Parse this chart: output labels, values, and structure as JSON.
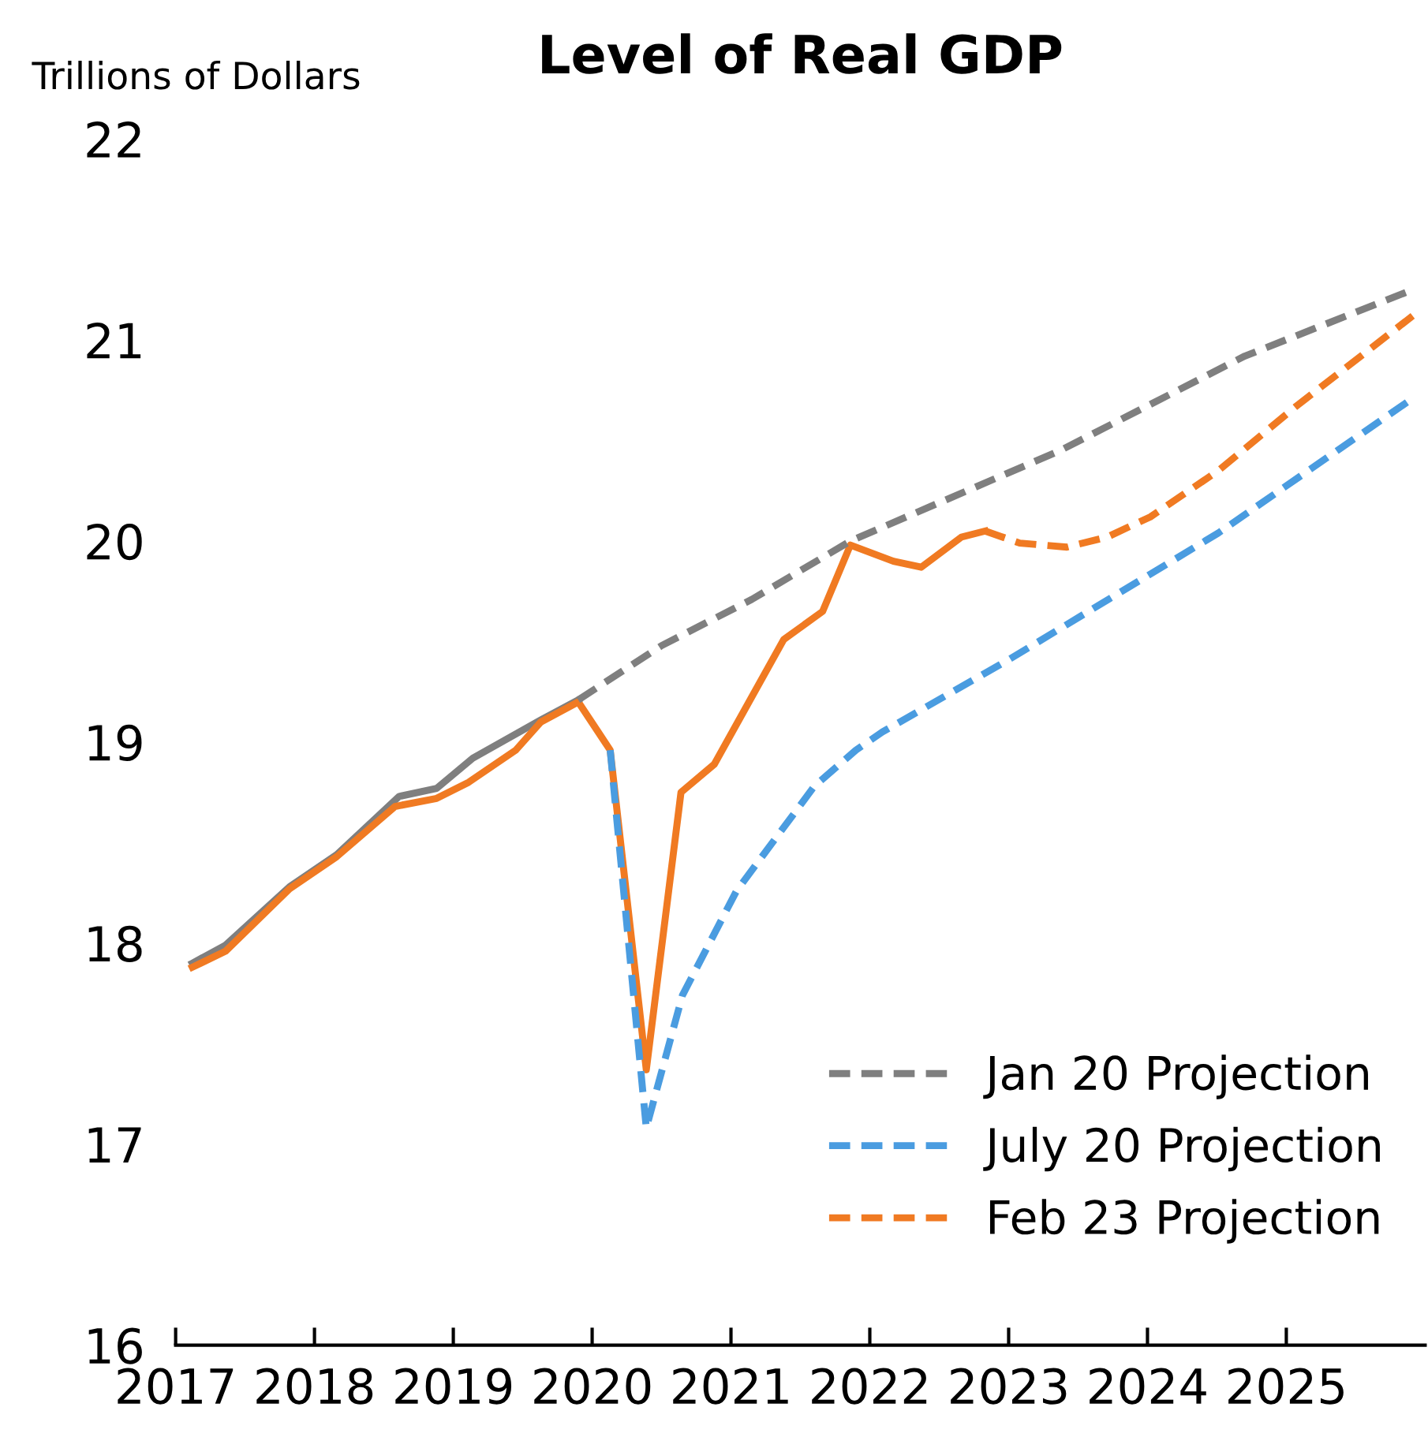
{
  "chart_data": {
    "type": "line",
    "title": "Level of Real GDP",
    "ylabel": "Trillions of Dollars",
    "xlim": [
      2017,
      2026
    ],
    "xticks": [
      2017,
      2018,
      2019,
      2020,
      2021,
      2022,
      2023,
      2024,
      2025
    ],
    "ylim": [
      16,
      22
    ],
    "yticks": [
      16,
      17,
      18,
      19,
      20,
      21,
      22
    ],
    "grid": false,
    "legend": "bottom right",
    "marker": "none",
    "series": [
      {
        "color": "#7f7f7f",
        "line_style": "solid",
        "x": [
          2017.12,
          2017.36,
          2017.82,
          2018.16,
          2018.61,
          2018.88,
          2019.14,
          2019.63,
          2019.9
        ],
        "values": [
          17.9,
          17.99,
          18.28,
          18.44,
          18.73,
          18.77,
          18.92,
          19.11,
          19.21
        ]
      },
      {
        "name": "Jan 20 Projection",
        "color": "#7f7f7f",
        "line_style": "dashed",
        "x": [
          2019.9,
          2020.5,
          2021.15,
          2021.86,
          2023.37,
          2024.7,
          2025.91
        ],
        "values": [
          19.21,
          19.48,
          19.71,
          20.0,
          20.45,
          20.92,
          21.25
        ]
      },
      {
        "name": "July 20 Projection",
        "color": "#4a9ce0",
        "line_style": "dashed",
        "x": [
          2020.13,
          2020.39,
          2020.65,
          2021.04,
          2021.6,
          2021.9,
          2022.09,
          2023.0,
          2024.51,
          2025.91
        ],
        "values": [
          18.96,
          17.08,
          17.74,
          18.26,
          18.78,
          18.96,
          19.05,
          19.41,
          20.04,
          20.71
        ]
      },
      {
        "color": "#f07a22",
        "line_style": "solid",
        "x": [
          2017.12,
          2017.36,
          2017.82,
          2018.16,
          2018.58,
          2018.88,
          2019.11,
          2019.45,
          2019.63,
          2019.9,
          2020.13,
          2020.39,
          2020.64,
          2020.88,
          2021.38,
          2021.66,
          2021.86,
          2022.17,
          2022.37,
          2022.66,
          2022.83
        ],
        "values": [
          17.88,
          17.96,
          18.27,
          18.43,
          18.68,
          18.72,
          18.8,
          18.96,
          19.1,
          19.2,
          18.96,
          17.37,
          18.75,
          18.89,
          19.51,
          19.65,
          19.98,
          19.9,
          19.87,
          20.02,
          20.05
        ]
      },
      {
        "name": "Feb 23 Projection",
        "color": "#f07a22",
        "line_style": "dashed",
        "x": [
          2022.83,
          2023.08,
          2023.42,
          2023.71,
          2024.02,
          2024.51,
          2025.07,
          2025.91
        ],
        "values": [
          20.05,
          19.99,
          19.97,
          20.02,
          20.12,
          20.35,
          20.67,
          21.12
        ]
      }
    ]
  }
}
